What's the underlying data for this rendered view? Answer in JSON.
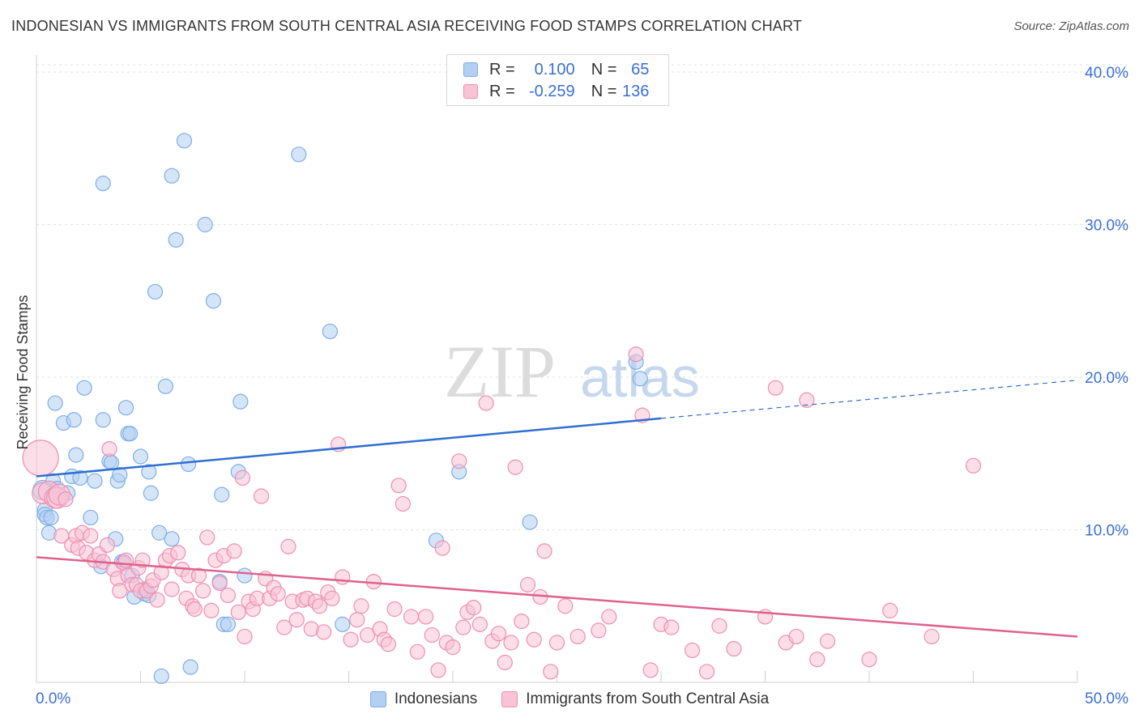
{
  "chart_data": {
    "type": "scatter",
    "title": "INDONESIAN VS IMMIGRANTS FROM SOUTH CENTRAL ASIA RECEIVING FOOD STAMPS CORRELATION CHART",
    "source": "Source: ZipAtlas.com",
    "ylabel": "Receiving Food Stamps",
    "xlabel": "",
    "xlim": [
      0,
      50
    ],
    "ylim": [
      0,
      40
    ],
    "x_tick_labels": [
      "0.0%",
      "50.0%"
    ],
    "y_tick_values": [
      10,
      20,
      30,
      40
    ],
    "y_tick_labels": [
      "10.0%",
      "20.0%",
      "30.0%",
      "40.0%"
    ],
    "watermark": {
      "zip": "ZIP",
      "atlas": "atlas"
    },
    "legend": {
      "r_label": "R =",
      "n_label": "N =",
      "entries": [
        {
          "r": "0.100",
          "n": "65"
        },
        {
          "r": "-0.259",
          "n": "136"
        }
      ]
    },
    "series": [
      {
        "name": "Indonesians",
        "color": "#7eaee8",
        "fill": "#b3cff2",
        "line_color": "#2f6fd1",
        "trend": {
          "x0": 0,
          "y0": 13.5,
          "x1": 30,
          "y1": 17.3,
          "dash_to_x": 50,
          "dash_to_y": 19.8
        },
        "points": [
          [
            0.3,
            12.6
          ],
          [
            0.4,
            11.3
          ],
          [
            0.4,
            11.0
          ],
          [
            0.5,
            10.8
          ],
          [
            0.6,
            9.8
          ],
          [
            0.7,
            10.8
          ],
          [
            0.8,
            13.2
          ],
          [
            0.9,
            18.3
          ],
          [
            1.0,
            12.7
          ],
          [
            1.2,
            12.1
          ],
          [
            1.3,
            17.0
          ],
          [
            1.5,
            12.4
          ],
          [
            1.7,
            13.5
          ],
          [
            1.8,
            17.2
          ],
          [
            1.9,
            14.9
          ],
          [
            2.1,
            13.4
          ],
          [
            2.3,
            19.3
          ],
          [
            2.6,
            10.8
          ],
          [
            2.8,
            13.2
          ],
          [
            3.1,
            7.6
          ],
          [
            3.2,
            32.7
          ],
          [
            3.2,
            17.2
          ],
          [
            3.5,
            14.5
          ],
          [
            3.6,
            14.4
          ],
          [
            3.8,
            9.4
          ],
          [
            3.9,
            13.2
          ],
          [
            4.0,
            13.6
          ],
          [
            4.1,
            7.9
          ],
          [
            4.2,
            7.9
          ],
          [
            4.3,
            18.0
          ],
          [
            4.4,
            16.3
          ],
          [
            4.5,
            16.3
          ],
          [
            4.6,
            7.0
          ],
          [
            4.7,
            5.6
          ],
          [
            5.0,
            14.8
          ],
          [
            5.2,
            6.1
          ],
          [
            5.2,
            5.8
          ],
          [
            5.4,
            5.7
          ],
          [
            5.4,
            13.8
          ],
          [
            5.5,
            12.4
          ],
          [
            5.7,
            25.6
          ],
          [
            5.9,
            9.8
          ],
          [
            6.0,
            0.4
          ],
          [
            6.2,
            19.4
          ],
          [
            6.5,
            33.2
          ],
          [
            6.5,
            9.4
          ],
          [
            6.7,
            29.0
          ],
          [
            7.1,
            35.5
          ],
          [
            7.3,
            14.3
          ],
          [
            7.4,
            1.0
          ],
          [
            8.1,
            30.0
          ],
          [
            8.5,
            25.0
          ],
          [
            8.8,
            6.6
          ],
          [
            8.9,
            12.3
          ],
          [
            9.0,
            3.8
          ],
          [
            9.2,
            3.8
          ],
          [
            9.7,
            13.8
          ],
          [
            9.8,
            18.4
          ],
          [
            10.0,
            7.0
          ],
          [
            12.6,
            34.6
          ],
          [
            14.1,
            23.0
          ],
          [
            14.7,
            3.8
          ],
          [
            19.2,
            9.3
          ],
          [
            20.3,
            13.8
          ],
          [
            23.7,
            10.5
          ],
          [
            28.8,
            21.0
          ],
          [
            29.0,
            19.9
          ]
        ]
      },
      {
        "name": "Immigrants from South Central Asia",
        "color": "#ee8fb0",
        "fill": "#f7c3d5",
        "line_color": "#e0628e",
        "trend": {
          "x0": 0,
          "y0": 8.2,
          "x1": 50,
          "y1": 3.0
        },
        "points": [
          [
            0.2,
            14.7
          ],
          [
            0.3,
            12.4
          ],
          [
            0.6,
            12.5
          ],
          [
            0.9,
            12.1
          ],
          [
            1.0,
            12.1
          ],
          [
            1.1,
            12.3
          ],
          [
            1.2,
            9.6
          ],
          [
            1.4,
            12.0
          ],
          [
            1.7,
            9.0
          ],
          [
            1.9,
            9.6
          ],
          [
            2.0,
            8.8
          ],
          [
            2.2,
            9.8
          ],
          [
            2.4,
            8.5
          ],
          [
            2.6,
            9.6
          ],
          [
            2.8,
            8.0
          ],
          [
            3.0,
            8.4
          ],
          [
            3.2,
            7.9
          ],
          [
            3.4,
            9.0
          ],
          [
            3.5,
            15.3
          ],
          [
            3.7,
            7.4
          ],
          [
            3.9,
            6.8
          ],
          [
            4.0,
            6.0
          ],
          [
            4.2,
            7.8
          ],
          [
            4.3,
            8.0
          ],
          [
            4.4,
            7.0
          ],
          [
            4.6,
            6.4
          ],
          [
            4.8,
            6.4
          ],
          [
            4.9,
            7.5
          ],
          [
            5.0,
            6.0
          ],
          [
            5.1,
            8.0
          ],
          [
            5.3,
            6.0
          ],
          [
            5.5,
            6.3
          ],
          [
            5.6,
            6.7
          ],
          [
            5.8,
            5.4
          ],
          [
            6.0,
            7.2
          ],
          [
            6.2,
            8.0
          ],
          [
            6.4,
            8.3
          ],
          [
            6.5,
            6.1
          ],
          [
            6.8,
            8.5
          ],
          [
            7.0,
            7.4
          ],
          [
            7.2,
            5.5
          ],
          [
            7.3,
            7.0
          ],
          [
            7.5,
            5.0
          ],
          [
            7.6,
            4.8
          ],
          [
            7.8,
            7.0
          ],
          [
            8.0,
            6.0
          ],
          [
            8.2,
            9.5
          ],
          [
            8.4,
            4.7
          ],
          [
            8.6,
            8.0
          ],
          [
            8.8,
            6.5
          ],
          [
            9.0,
            8.3
          ],
          [
            9.2,
            5.7
          ],
          [
            9.5,
            8.6
          ],
          [
            9.7,
            4.6
          ],
          [
            9.9,
            13.4
          ],
          [
            10.0,
            3.0
          ],
          [
            10.2,
            5.3
          ],
          [
            10.4,
            4.8
          ],
          [
            10.6,
            5.5
          ],
          [
            10.8,
            12.2
          ],
          [
            11.0,
            6.8
          ],
          [
            11.2,
            5.5
          ],
          [
            11.4,
            6.2
          ],
          [
            11.6,
            5.8
          ],
          [
            11.9,
            3.6
          ],
          [
            12.1,
            8.9
          ],
          [
            12.3,
            5.3
          ],
          [
            12.5,
            4.1
          ],
          [
            12.8,
            5.4
          ],
          [
            13.0,
            5.5
          ],
          [
            13.2,
            3.5
          ],
          [
            13.4,
            5.3
          ],
          [
            13.6,
            5.0
          ],
          [
            13.8,
            3.3
          ],
          [
            14.0,
            5.9
          ],
          [
            14.2,
            5.5
          ],
          [
            14.5,
            15.6
          ],
          [
            14.7,
            6.9
          ],
          [
            15.1,
            2.8
          ],
          [
            15.4,
            4.1
          ],
          [
            15.6,
            5.0
          ],
          [
            15.9,
            3.1
          ],
          [
            16.2,
            6.6
          ],
          [
            16.5,
            3.5
          ],
          [
            16.7,
            2.8
          ],
          [
            16.9,
            2.5
          ],
          [
            17.2,
            4.8
          ],
          [
            17.4,
            12.9
          ],
          [
            17.6,
            11.7
          ],
          [
            18.0,
            4.3
          ],
          [
            18.3,
            2.0
          ],
          [
            18.7,
            4.3
          ],
          [
            19.0,
            3.1
          ],
          [
            19.3,
            0.8
          ],
          [
            19.5,
            8.8
          ],
          [
            19.7,
            2.6
          ],
          [
            20.0,
            2.3
          ],
          [
            20.3,
            14.5
          ],
          [
            20.5,
            3.6
          ],
          [
            20.7,
            4.6
          ],
          [
            21.0,
            4.9
          ],
          [
            21.3,
            3.8
          ],
          [
            21.6,
            18.3
          ],
          [
            21.9,
            2.7
          ],
          [
            22.2,
            3.2
          ],
          [
            22.5,
            1.3
          ],
          [
            22.8,
            2.6
          ],
          [
            23.0,
            14.1
          ],
          [
            23.3,
            4.0
          ],
          [
            23.6,
            6.4
          ],
          [
            23.9,
            2.8
          ],
          [
            24.2,
            5.6
          ],
          [
            24.4,
            8.6
          ],
          [
            24.7,
            0.7
          ],
          [
            25.0,
            2.6
          ],
          [
            25.4,
            5.0
          ],
          [
            26.0,
            3.0
          ],
          [
            27.0,
            3.4
          ],
          [
            27.5,
            4.3
          ],
          [
            28.8,
            21.5
          ],
          [
            29.1,
            17.5
          ],
          [
            29.5,
            0.8
          ],
          [
            30.0,
            3.8
          ],
          [
            30.5,
            3.6
          ],
          [
            31.5,
            2.1
          ],
          [
            32.2,
            0.7
          ],
          [
            32.8,
            3.7
          ],
          [
            33.5,
            2.2
          ],
          [
            35.0,
            4.3
          ],
          [
            35.5,
            19.3
          ],
          [
            36.0,
            2.6
          ],
          [
            36.5,
            3.0
          ],
          [
            37.0,
            18.5
          ],
          [
            37.5,
            1.5
          ],
          [
            38.0,
            2.7
          ],
          [
            40.0,
            1.5
          ],
          [
            41.0,
            4.7
          ],
          [
            43.0,
            3.0
          ],
          [
            45.0,
            14.2
          ]
        ]
      }
    ]
  }
}
